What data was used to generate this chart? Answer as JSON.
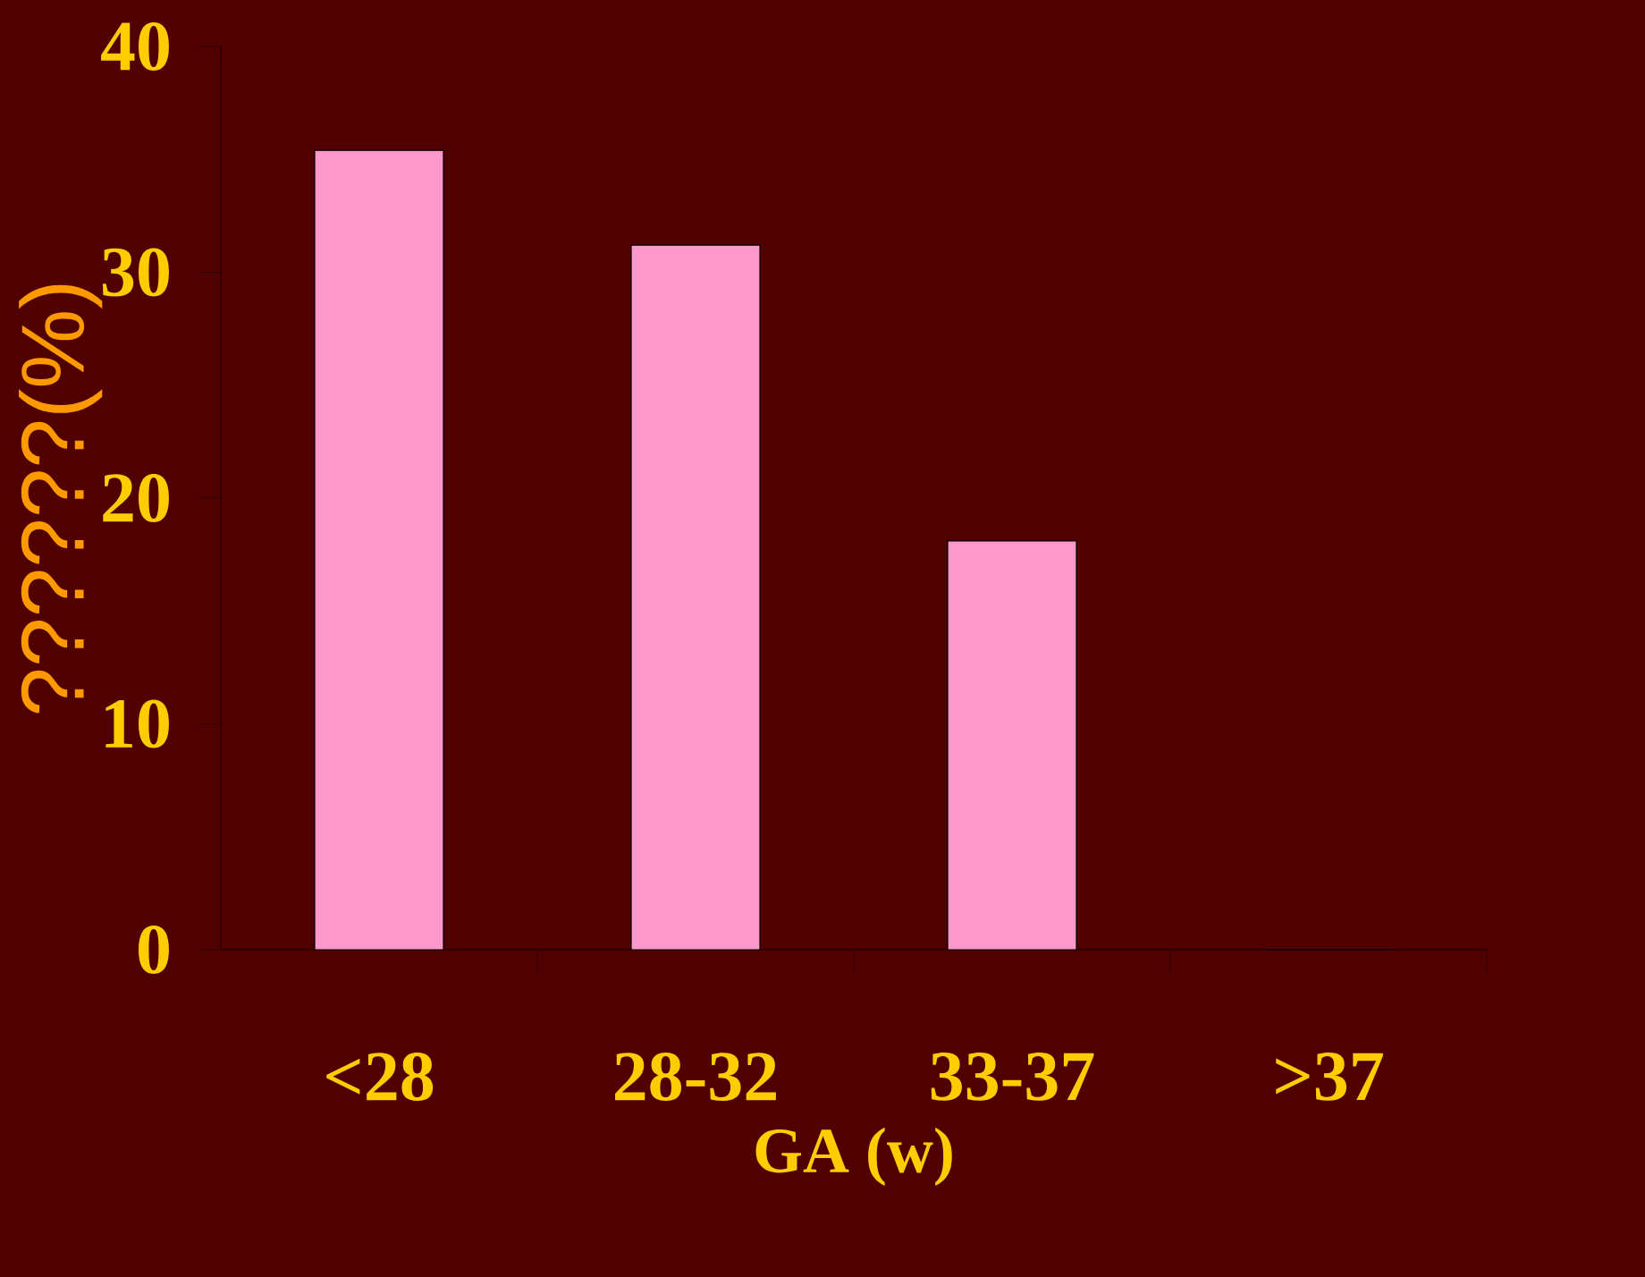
{
  "chart_data": {
    "type": "bar",
    "xlabel": "GA (w)",
    "ylabel": "??????(%)",
    "categories": [
      "<28",
      "28-32",
      "33-37",
      ">37"
    ],
    "values": [
      35.4,
      31.2,
      18.1,
      0
    ],
    "color": "#ff99cc",
    "ylim": [
      0,
      40
    ],
    "yticks": [
      0,
      10,
      20,
      30,
      40
    ]
  }
}
